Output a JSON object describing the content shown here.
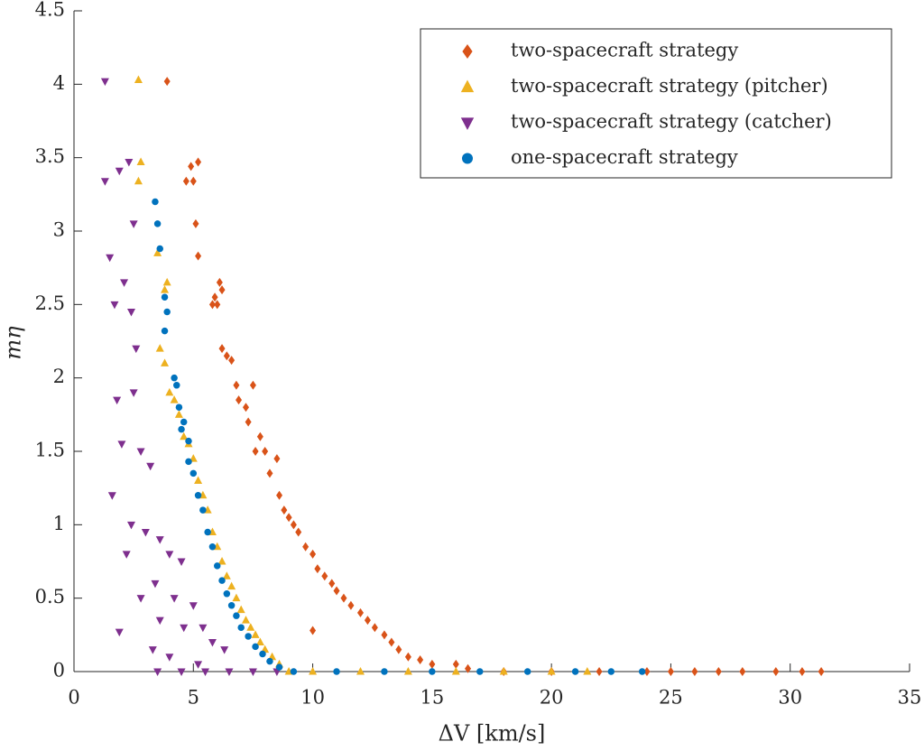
{
  "chart_data": {
    "type": "scatter",
    "xlabel": "ΔV [km/s]",
    "ylabel": "mη",
    "xlim": [
      0,
      35
    ],
    "ylim": [
      0,
      4.5
    ],
    "xticks": [
      0,
      5,
      10,
      15,
      20,
      25,
      30,
      35
    ],
    "yticks": [
      0,
      0.5,
      1,
      1.5,
      2,
      2.5,
      3,
      3.5,
      4,
      4.5
    ],
    "legend": "upper right",
    "series": [
      {
        "name": "two-spacecraft strategy",
        "color": "#D95319",
        "marker": "diamond",
        "x": [
          3.9,
          4.7,
          4.9,
          5.2,
          5.0,
          5.1,
          5.2,
          5.8,
          5.9,
          6.1,
          6.2,
          6.2,
          6.4,
          6.6,
          6.0,
          6.8,
          6.9,
          7.2,
          7.5,
          7.3,
          7.6,
          7.8,
          8.0,
          8.2,
          8.5,
          8.6,
          8.8,
          9.0,
          9.2,
          9.4,
          9.7,
          10.0,
          10.2,
          10.5,
          10.8,
          11.0,
          11.3,
          11.6,
          12.0,
          12.3,
          12.6,
          13.0,
          13.3,
          13.6,
          14.0,
          14.5,
          15.0,
          16.0,
          16.5,
          10.0,
          18,
          20,
          22,
          24,
          25,
          26,
          27,
          28,
          29.4,
          30.5,
          31.3
        ],
        "values": [
          4.02,
          3.34,
          3.44,
          3.47,
          3.34,
          3.05,
          2.83,
          2.5,
          2.55,
          2.65,
          2.6,
          2.2,
          2.15,
          2.12,
          2.5,
          1.95,
          1.85,
          1.8,
          1.95,
          1.7,
          1.5,
          1.6,
          1.5,
          1.35,
          1.45,
          1.2,
          1.1,
          1.05,
          1.0,
          0.95,
          0.85,
          0.8,
          0.7,
          0.65,
          0.6,
          0.55,
          0.5,
          0.45,
          0.4,
          0.35,
          0.3,
          0.25,
          0.2,
          0.15,
          0.1,
          0.08,
          0.05,
          0.05,
          0.02,
          0.28,
          0,
          0,
          0,
          0,
          0,
          0,
          0,
          0,
          0,
          0,
          0
        ]
      },
      {
        "name": "two-spacecraft strategy (pitcher)",
        "color": "#EDB120",
        "marker": "triangle-up",
        "x": [
          2.7,
          2.8,
          2.7,
          3.5,
          3.8,
          3.9,
          3.6,
          3.8,
          4.0,
          4.2,
          4.4,
          4.6,
          4.8,
          5.0,
          5.2,
          5.4,
          5.6,
          5.8,
          6.0,
          6.2,
          6.4,
          6.6,
          6.8,
          7.0,
          7.2,
          7.4,
          7.6,
          7.8,
          8.0,
          8.3,
          8.6,
          9.0,
          10,
          12,
          14,
          16,
          18,
          20,
          21.5
        ],
        "values": [
          4.03,
          3.47,
          3.34,
          2.85,
          2.6,
          2.65,
          2.2,
          2.1,
          1.9,
          1.85,
          1.75,
          1.6,
          1.55,
          1.45,
          1.3,
          1.2,
          1.1,
          0.95,
          0.85,
          0.75,
          0.65,
          0.58,
          0.5,
          0.42,
          0.35,
          0.3,
          0.25,
          0.2,
          0.15,
          0.1,
          0.05,
          0,
          0,
          0,
          0,
          0,
          0,
          0,
          0
        ]
      },
      {
        "name": "two-spacecraft strategy (catcher)",
        "color": "#7E2F8E",
        "marker": "triangle-down",
        "x": [
          1.3,
          2.3,
          1.9,
          1.3,
          2.5,
          1.5,
          2.1,
          1.7,
          2.4,
          2.6,
          1.8,
          2.5,
          2.0,
          2.8,
          3.2,
          1.6,
          2.4,
          3.0,
          3.6,
          2.2,
          4.0,
          4.5,
          3.4,
          2.8,
          4.2,
          5.0,
          3.6,
          1.9,
          4.6,
          5.4,
          3.3,
          4.0,
          5.8,
          6.3,
          5.2,
          3.5,
          4.5,
          5.5,
          6.5,
          7.5,
          8.5
        ],
        "values": [
          4.02,
          3.47,
          3.41,
          3.34,
          3.05,
          2.82,
          2.65,
          2.5,
          2.45,
          2.2,
          1.85,
          1.9,
          1.55,
          1.5,
          1.4,
          1.2,
          1.0,
          0.95,
          0.9,
          0.8,
          0.8,
          0.75,
          0.6,
          0.5,
          0.5,
          0.45,
          0.35,
          0.27,
          0.3,
          0.3,
          0.15,
          0.1,
          0.2,
          0.15,
          0.05,
          0,
          0,
          0,
          0,
          0,
          0
        ]
      },
      {
        "name": "one-spacecraft strategy",
        "color": "#0072BD",
        "marker": "circle",
        "x": [
          3.4,
          3.5,
          3.6,
          3.8,
          3.9,
          3.8,
          4.2,
          4.3,
          4.4,
          4.6,
          4.5,
          4.8,
          4.8,
          5.0,
          5.2,
          5.4,
          5.6,
          5.8,
          6.0,
          6.2,
          6.4,
          6.6,
          6.8,
          7.0,
          7.3,
          7.6,
          7.9,
          8.2,
          8.6,
          9.2,
          11,
          13,
          15,
          17,
          19,
          21,
          22.5,
          23.8
        ],
        "values": [
          3.2,
          3.05,
          2.88,
          2.55,
          2.45,
          2.32,
          2.0,
          1.95,
          1.8,
          1.7,
          1.65,
          1.57,
          1.43,
          1.35,
          1.2,
          1.1,
          0.95,
          0.85,
          0.72,
          0.62,
          0.53,
          0.45,
          0.38,
          0.3,
          0.24,
          0.17,
          0.12,
          0.07,
          0.03,
          0,
          0,
          0,
          0,
          0,
          0,
          0,
          0,
          0
        ]
      }
    ]
  }
}
